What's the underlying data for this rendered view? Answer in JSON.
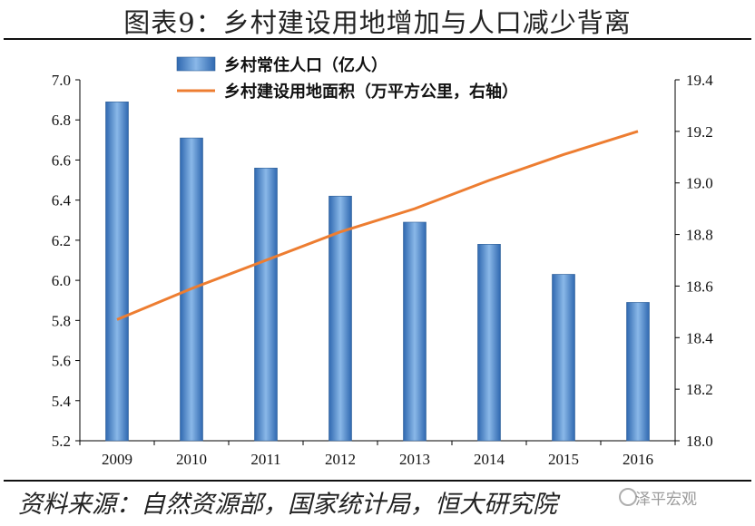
{
  "header": {
    "title": "图表9：乡村建设用地增加与人口减少背离"
  },
  "footer": {
    "source": "资料来源：自然资源部，国家统计局，恒大研究院",
    "watermark": "泽平宏观"
  },
  "colors": {
    "bar": "#4a86c6",
    "bar_edge": "#2f5f96",
    "line": "#ed7d31",
    "axis": "#000000"
  },
  "chart_data": {
    "type": "bar",
    "categories": [
      "2009",
      "2010",
      "2011",
      "2012",
      "2013",
      "2014",
      "2015",
      "2016"
    ],
    "series": [
      {
        "name": "乡村常住人口（亿人）",
        "type": "bar",
        "axis": "left",
        "values": [
          6.89,
          6.71,
          6.56,
          6.42,
          6.29,
          6.18,
          6.03,
          5.89
        ]
      },
      {
        "name": "乡村建设用地面积（万平方公里，右轴）",
        "type": "line",
        "axis": "right",
        "values": [
          18.47,
          18.59,
          18.7,
          18.81,
          18.9,
          19.01,
          19.11,
          19.2
        ]
      }
    ],
    "y_left": {
      "range": [
        5.2,
        7.0
      ],
      "ticks": [
        "5.2",
        "5.4",
        "5.6",
        "5.8",
        "6.0",
        "6.2",
        "6.4",
        "6.6",
        "6.8",
        "7.0"
      ]
    },
    "y_right": {
      "range": [
        18.0,
        19.4
      ],
      "ticks": [
        "18.0",
        "18.2",
        "18.4",
        "18.6",
        "18.8",
        "19.0",
        "19.2",
        "19.4"
      ]
    },
    "legend_position": "top-left",
    "grid": false
  }
}
